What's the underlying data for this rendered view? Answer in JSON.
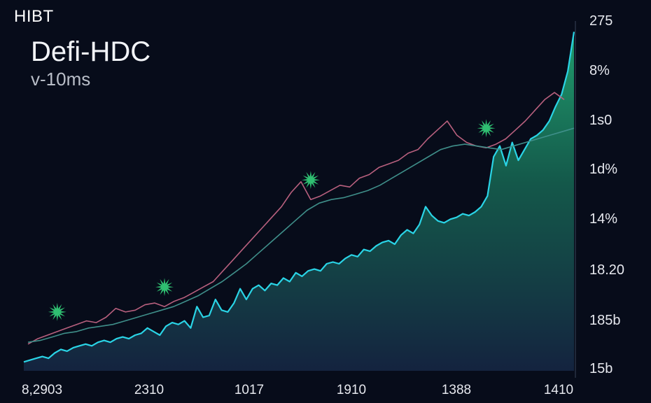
{
  "corner_label": "HIBT",
  "chart_data": {
    "type": "area",
    "title": "Defi-HDC",
    "subtitle": "v-10ms",
    "xlabel": "",
    "ylabel": "",
    "x_tick_labels": [
      "8,2903",
      "2310",
      "1017",
      "1910",
      "1388",
      "1410"
    ],
    "y_tick_labels": [
      "275",
      "8%",
      "1s0",
      "1d%",
      "14%",
      "18.20",
      "185b",
      "15b"
    ],
    "grid": false,
    "legend": "none",
    "series": [
      {
        "kind": "area",
        "color": "#2ad4e6",
        "values": [
          5,
          6,
          7,
          8,
          7,
          10,
          12,
          11,
          13,
          14,
          15,
          14,
          16,
          17,
          16,
          18,
          19,
          18,
          20,
          21,
          24,
          22,
          20,
          25,
          27,
          26,
          28,
          24,
          36,
          30,
          31,
          40,
          34,
          33,
          38,
          46,
          40,
          46,
          48,
          45,
          49,
          48,
          52,
          50,
          55,
          53,
          56,
          57,
          56,
          60,
          61,
          60,
          63,
          65,
          64,
          68,
          67,
          70,
          72,
          73,
          71,
          76,
          79,
          77,
          82,
          92,
          87,
          84,
          83,
          85,
          86,
          88,
          87,
          89,
          92,
          98,
          120,
          126,
          115,
          128,
          118,
          124,
          130,
          132,
          135,
          140,
          148,
          155,
          168,
          190
        ]
      },
      {
        "kind": "line",
        "color": "#b8607e",
        "values": [
          15,
          18,
          20,
          22,
          24,
          26,
          28,
          27,
          30,
          35,
          33,
          34,
          37,
          38,
          36,
          39,
          41,
          44,
          47,
          50,
          56,
          62,
          68,
          74,
          80,
          86,
          92,
          100,
          106,
          96,
          98,
          101,
          104,
          103,
          108,
          110,
          114,
          116,
          118,
          122,
          124,
          130,
          135,
          140,
          132,
          128,
          126,
          125,
          127,
          130,
          135,
          140,
          146,
          152,
          156,
          152
        ]
      },
      {
        "kind": "line",
        "color": "#3f8f8a",
        "values": [
          16,
          17,
          19,
          21,
          22,
          24,
          25,
          26,
          28,
          30,
          32,
          34,
          36,
          39,
          42,
          46,
          50,
          55,
          60,
          66,
          72,
          78,
          84,
          90,
          94,
          96,
          97,
          99,
          101,
          104,
          108,
          112,
          116,
          120,
          124,
          126,
          127,
          126,
          125,
          124,
          126,
          128,
          130,
          132,
          134,
          136
        ]
      }
    ],
    "markers": [
      {
        "kind": "star",
        "color": "#2fbf71",
        "x_index": 3
      },
      {
        "kind": "star",
        "color": "#2fbf71",
        "x_index": 14
      },
      {
        "kind": "star",
        "color": "#2fbf71",
        "x_index": 29
      },
      {
        "kind": "star",
        "color": "#2fbf71",
        "x_index": 47
      }
    ]
  }
}
